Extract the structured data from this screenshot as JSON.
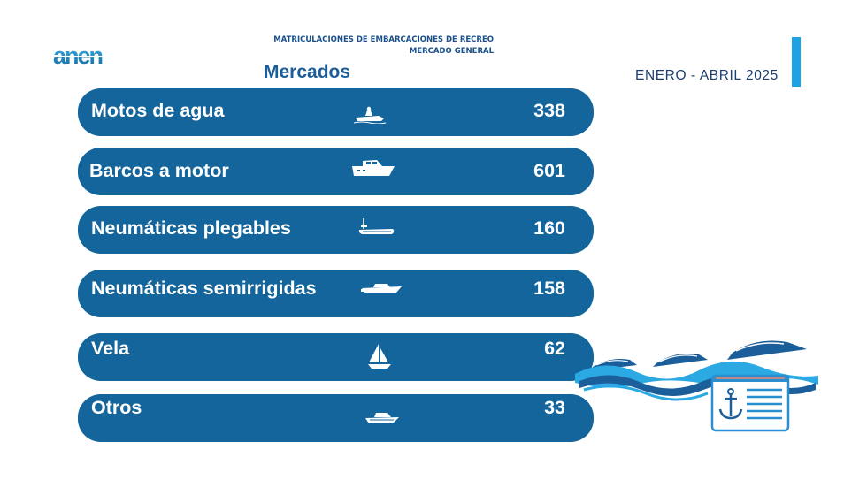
{
  "logo": {
    "text": "anen"
  },
  "header": {
    "line1": "MATRICULACIONES DE EMBARCACIONES DE RECREO",
    "line2": "MERCADO GENERAL"
  },
  "section_title": "Mercados",
  "period": "ENERO - ABRIL 2025",
  "colors": {
    "row_bg": "#13659c",
    "accent": "#1ba3e6",
    "title": "#1b5e9a"
  },
  "markets": [
    {
      "label": "Motos de agua",
      "value": "338",
      "icon": "jet-ski-icon"
    },
    {
      "label": "Barcos a motor",
      "value": "601",
      "icon": "motor-boat-icon"
    },
    {
      "label": "Neumáticas plegables",
      "value": "160",
      "icon": "inflatable-boat-icon"
    },
    {
      "label": "Neumáticas semirrigidas",
      "value": "158",
      "icon": "rib-boat-icon"
    },
    {
      "label": "Vela",
      "value": "62",
      "icon": "sailboat-icon"
    },
    {
      "label": "Otros",
      "value": "33",
      "icon": "other-boat-icon"
    }
  ],
  "decoration": {
    "icon": "waves-registry-anchor-icon"
  }
}
